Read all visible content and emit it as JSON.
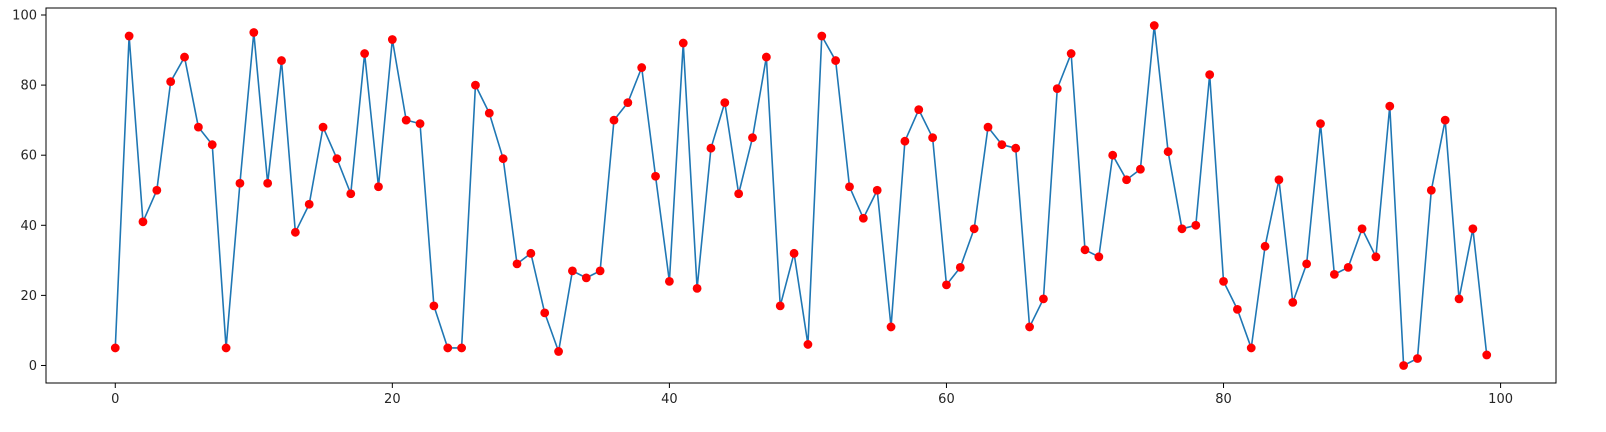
{
  "chart_data": {
    "type": "line",
    "title": "",
    "xlabel": "",
    "ylabel": "",
    "xlim": [
      -5,
      104
    ],
    "ylim": [
      -5,
      102
    ],
    "x_ticks": [
      0,
      20,
      40,
      60,
      80,
      100
    ],
    "y_ticks": [
      0,
      20,
      40,
      60,
      80,
      100
    ],
    "x_tick_labels": [
      "0",
      "20",
      "40",
      "60",
      "80",
      "100"
    ],
    "y_tick_labels": [
      "0",
      "20",
      "40",
      "60",
      "80",
      "100"
    ],
    "grid": false,
    "colors": {
      "line": "#1f77b4",
      "marker": "#ff0000",
      "axis": "#000000"
    },
    "series": [
      {
        "marker": "circle",
        "x": [
          0,
          1,
          2,
          3,
          4,
          5,
          6,
          7,
          8,
          9,
          10,
          11,
          12,
          13,
          14,
          15,
          16,
          17,
          18,
          19,
          20,
          21,
          22,
          23,
          24,
          25,
          26,
          27,
          28,
          29,
          30,
          31,
          32,
          33,
          34,
          35,
          36,
          37,
          38,
          39,
          40,
          41,
          42,
          43,
          44,
          45,
          46,
          47,
          48,
          49,
          50,
          51,
          52,
          53,
          54,
          55,
          56,
          57,
          58,
          59,
          60,
          61,
          62,
          63,
          64,
          65,
          66,
          67,
          68,
          69,
          70,
          71,
          72,
          73,
          74,
          75,
          76,
          77,
          78,
          79,
          80,
          81,
          82,
          83,
          84,
          85,
          86,
          87,
          88,
          89,
          90,
          91,
          92,
          93,
          94,
          95,
          96,
          97,
          98,
          99
        ],
        "y": [
          5,
          94,
          41,
          50,
          81,
          88,
          68,
          63,
          5,
          52,
          95,
          52,
          87,
          38,
          46,
          68,
          59,
          49,
          89,
          51,
          93,
          70,
          69,
          17,
          5,
          5,
          80,
          72,
          59,
          29,
          32,
          15,
          4,
          27,
          25,
          27,
          70,
          75,
          85,
          54,
          24,
          92,
          22,
          62,
          75,
          49,
          65,
          88,
          17,
          32,
          6,
          94,
          87,
          51,
          42,
          50,
          11,
          64,
          73,
          65,
          23,
          28,
          39,
          68,
          63,
          62,
          11,
          19,
          79,
          89,
          33,
          31,
          60,
          53,
          56,
          97,
          61,
          39,
          40,
          83,
          24,
          16,
          5,
          34,
          53,
          18,
          29,
          69,
          26,
          28,
          39,
          31,
          74,
          0,
          2,
          50,
          70,
          19,
          39,
          3
        ]
      }
    ]
  }
}
